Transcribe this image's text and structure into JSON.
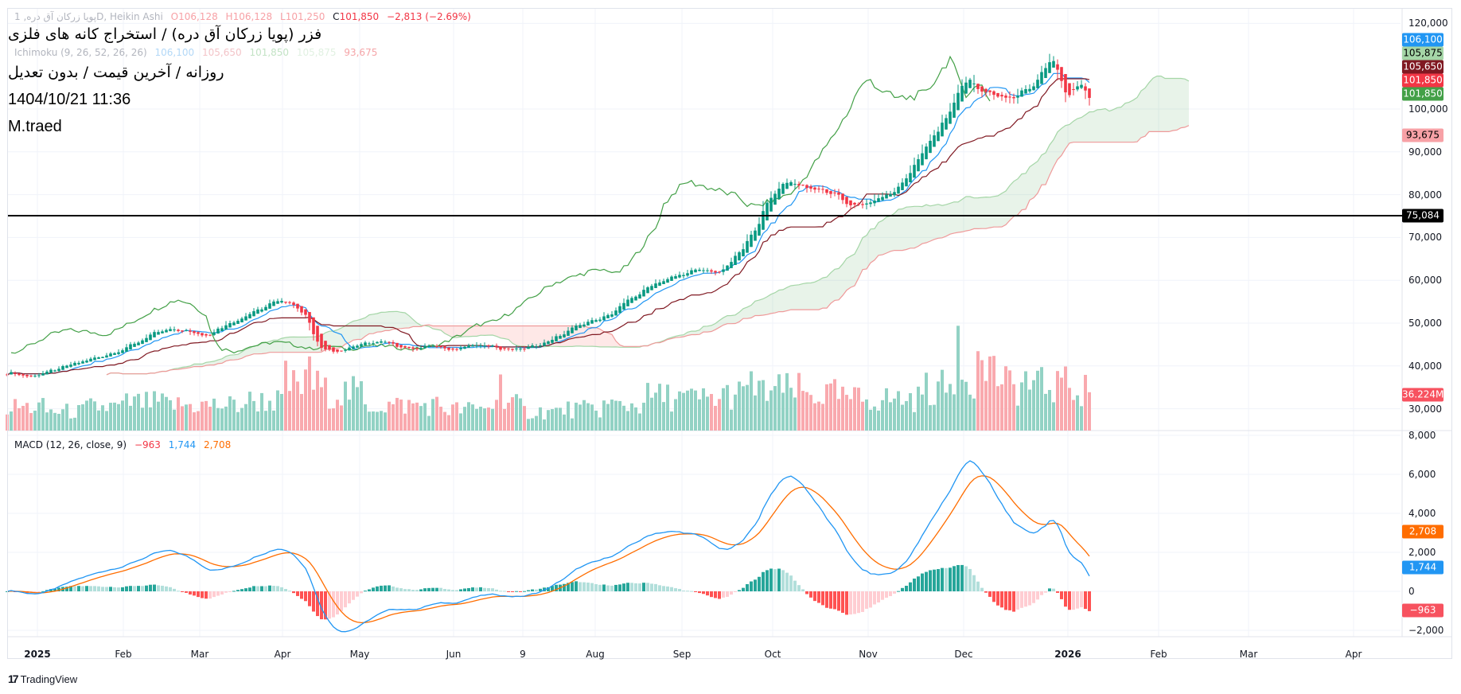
{
  "overlay": {
    "title": "فزر (پویا زرکان آق دره) / استخراج کانه های فلزی",
    "subtitle": "روزانه / آخرین قیمت / بدون تعدیل",
    "datetime": "1404/10/21 11:36",
    "author": "M.traed"
  },
  "legend": {
    "symbol": "پویا زرکان آق دره, 1D, Heikin Ashi",
    "open": "O106,128",
    "high": "H106,128",
    "low": "L101,250",
    "close_prefix": "C",
    "close": "101,850",
    "change": "−2,813 (−2.69%)",
    "ichimoku_label": "Ichimoku (9, 26, 52, 26, 26)",
    "ichimoku_values": [
      "106,100",
      "105,650",
      "101,850",
      "105,875",
      "93,675"
    ],
    "macd_label": "MACD (12, 26, close, 9)",
    "macd_hist": "−963",
    "macd_line": "1,744",
    "macd_signal": "2,708"
  },
  "price_axis": [
    "120,000",
    "100,000",
    "90,000",
    "80,000",
    "70,000",
    "60,000",
    "50,000",
    "40,000",
    "30,000"
  ],
  "macd_axis": [
    "8,000",
    "6,000",
    "4,000",
    "2,000",
    "0",
    "−2,000"
  ],
  "price_badges": [
    {
      "text": "106,100",
      "bg": "#2196f3",
      "fg": "#ffffff"
    },
    {
      "text": "105,875",
      "bg": "#a5d6a7",
      "fg": "#000000"
    },
    {
      "text": "105,650",
      "bg": "#801922",
      "fg": "#ffffff"
    },
    {
      "text": "101,850",
      "bg": "#f23645",
      "fg": "#ffffff"
    },
    {
      "text": "101,850",
      "bg": "#43a047",
      "fg": "#ffffff"
    },
    {
      "text": "93,675",
      "bg": "#f7a1a6",
      "fg": "#000000"
    },
    {
      "text": "75,084",
      "bg": "#000000",
      "fg": "#ffffff"
    },
    {
      "text": "36.224M",
      "bg": "#f7525f",
      "fg": "#ffffff"
    }
  ],
  "macd_badges": [
    {
      "text": "2,708",
      "bg": "#ff6d00",
      "fg": "#ffffff"
    },
    {
      "text": "1,744",
      "bg": "#2196f3",
      "fg": "#ffffff"
    },
    {
      "text": "−963",
      "bg": "#f7525f",
      "fg": "#ffffff"
    }
  ],
  "time_axis": [
    "2025",
    "Feb",
    "Mar",
    "Apr",
    "May",
    "Jun",
    "9",
    "Aug",
    "Sep",
    "Oct",
    "Nov",
    "Dec",
    "2026",
    "Feb",
    "Mar",
    "Apr"
  ],
  "branding": "TradingView",
  "colors": {
    "up": "#089981",
    "down": "#f23645",
    "tenkan": "#2196f3",
    "kijun": "#801922",
    "chikou": "#43a047",
    "spanA": "#a5d6a7",
    "spanB": "#ef9a9a",
    "macd": "#2196f3",
    "signal": "#ff6d00",
    "hline": "#000000"
  },
  "chart_data": {
    "type": "candlestick",
    "style": "Heikin Ashi",
    "bars": 273,
    "close_keypoints": [
      [
        0,
        38600
      ],
      [
        5,
        37500
      ],
      [
        10,
        38600
      ],
      [
        15,
        40100
      ],
      [
        22,
        41900
      ],
      [
        29,
        44000
      ],
      [
        36,
        47300
      ],
      [
        40,
        48400
      ],
      [
        45,
        48000
      ],
      [
        50,
        47300
      ],
      [
        57,
        50500
      ],
      [
        61,
        52700
      ],
      [
        66,
        54900
      ],
      [
        68,
        55500
      ],
      [
        72,
        54200
      ],
      [
        75,
        51600
      ],
      [
        77,
        46200
      ],
      [
        79,
        44000
      ],
      [
        82,
        43400
      ],
      [
        87,
        44700
      ],
      [
        92,
        45600
      ],
      [
        96,
        45200
      ],
      [
        101,
        44000
      ],
      [
        106,
        44700
      ],
      [
        111,
        43800
      ],
      [
        115,
        44700
      ],
      [
        120,
        44700
      ],
      [
        125,
        44000
      ],
      [
        129,
        44000
      ],
      [
        134,
        45100
      ],
      [
        139,
        47300
      ],
      [
        143,
        49500
      ],
      [
        148,
        50500
      ],
      [
        153,
        53400
      ],
      [
        157,
        56000
      ],
      [
        162,
        59200
      ],
      [
        167,
        60700
      ],
      [
        171,
        62000
      ],
      [
        176,
        62500
      ],
      [
        178,
        61400
      ],
      [
        181,
        63500
      ],
      [
        185,
        68500
      ],
      [
        188,
        72200
      ],
      [
        190,
        77700
      ],
      [
        193,
        80900
      ],
      [
        196,
        83100
      ],
      [
        200,
        82000
      ],
      [
        204,
        80900
      ],
      [
        209,
        79400
      ],
      [
        211,
        77700
      ],
      [
        213,
        77200
      ],
      [
        218,
        78700
      ],
      [
        223,
        80900
      ],
      [
        228,
        87400
      ],
      [
        232,
        92800
      ],
      [
        237,
        100400
      ],
      [
        239,
        104800
      ],
      [
        242,
        106900
      ],
      [
        244,
        104800
      ],
      [
        248,
        102600
      ],
      [
        251,
        102600
      ],
      [
        256,
        103700
      ],
      [
        259,
        108000
      ],
      [
        262,
        112000
      ],
      [
        264,
        107000
      ],
      [
        266,
        103700
      ],
      [
        270,
        105800
      ],
      [
        272,
        101850
      ]
    ],
    "volume_levels_m": [
      22,
      18,
      22,
      26,
      24,
      24,
      28,
      42,
      36,
      24,
      24,
      20,
      24,
      18,
      20,
      24,
      32,
      30,
      34,
      38,
      34,
      30,
      30,
      40,
      55,
      42,
      42,
      38
    ],
    "volume_spikes_m": [
      [
        70,
        66
      ],
      [
        76,
        70
      ],
      [
        124,
        53
      ],
      [
        187,
        56
      ],
      [
        239,
        99
      ],
      [
        244,
        75
      ],
      [
        247,
        70
      ],
      [
        256,
        56
      ],
      [
        265,
        50
      ],
      [
        272,
        36.224
      ]
    ],
    "horizontal_line": 75084,
    "indicators": {
      "ichimoku": {
        "conversion": 9,
        "base": 26,
        "span_b": 52,
        "lagging": 26,
        "displacement": 26
      },
      "macd": {
        "fast": 12,
        "slow": 26,
        "signal": 9
      }
    },
    "price_range": [
      30000,
      120000
    ],
    "macd_range": [
      -2000,
      8000
    ]
  }
}
